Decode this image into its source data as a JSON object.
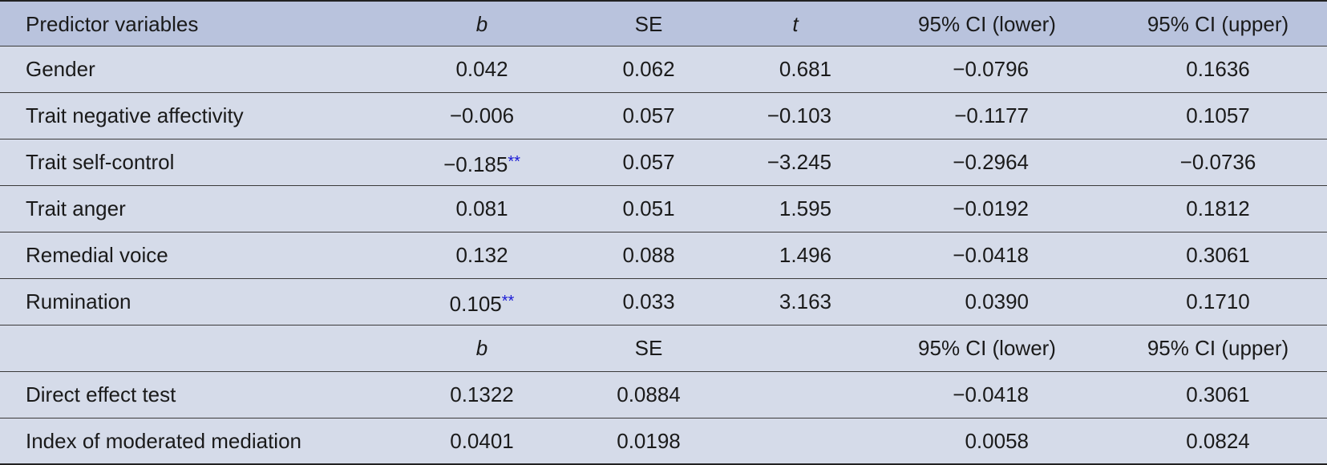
{
  "table": {
    "header": [
      "Predictor variables",
      "b",
      "SE",
      "t",
      "95% CI (lower)",
      "95% CI (upper)"
    ],
    "rows": [
      [
        "Gender",
        "0.042",
        "0.062",
        "0.681",
        "−0.0796",
        "0.1636"
      ],
      [
        "Trait negative affectivity",
        "−0.006",
        "0.057",
        "−0.103",
        "−0.1177",
        "0.1057"
      ],
      [
        "Trait self-control",
        {
          "text": "−0.185",
          "mark": "**"
        },
        "0.057",
        "−3.245",
        "−0.2964",
        "−0.0736"
      ],
      [
        "Trait anger",
        "0.081",
        "0.051",
        "1.595",
        "−0.0192",
        "0.1812"
      ],
      [
        "Remedial voice",
        "0.132",
        "0.088",
        "1.496",
        "−0.0418",
        "0.3061"
      ],
      [
        "Rumination",
        {
          "text": "0.105",
          "mark": "**"
        },
        "0.033",
        "3.163",
        "0.0390",
        "0.1710"
      ]
    ],
    "effects_header": [
      "b",
      "SE",
      "95% CI (lower)",
      "95% CI (upper)"
    ],
    "effects_rows": [
      [
        "Direct effect test",
        "0.1322",
        "0.0884",
        "−0.0418",
        "0.3061"
      ],
      [
        "Index of moderated mediation",
        "0.0401",
        "0.0198",
        "0.0058",
        "0.0824"
      ]
    ]
  }
}
